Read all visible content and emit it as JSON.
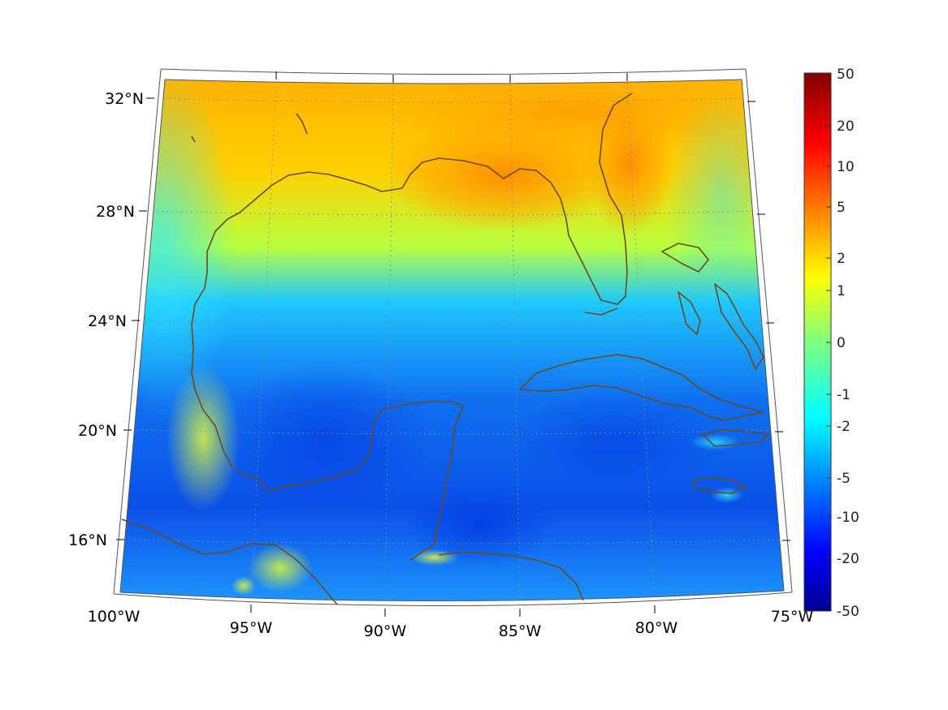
{
  "map": {
    "lat_labels": [
      "32°N",
      "28°N",
      "24°N",
      "20°N",
      "16°N"
    ],
    "lon_labels": [
      "100°W",
      "95°W",
      "90°W",
      "85°W",
      "80°W",
      "75°W"
    ],
    "colors": {
      "frame": "#ffffff",
      "coastline": "#6b4a1e",
      "graticule": "#888888"
    }
  },
  "colorbar": {
    "labels": [
      "50",
      "20",
      "10",
      "5",
      "2",
      "1",
      "0",
      "-1",
      "-2",
      "-5",
      "-10",
      "-20",
      "-50"
    ],
    "colormap": "jet"
  }
}
